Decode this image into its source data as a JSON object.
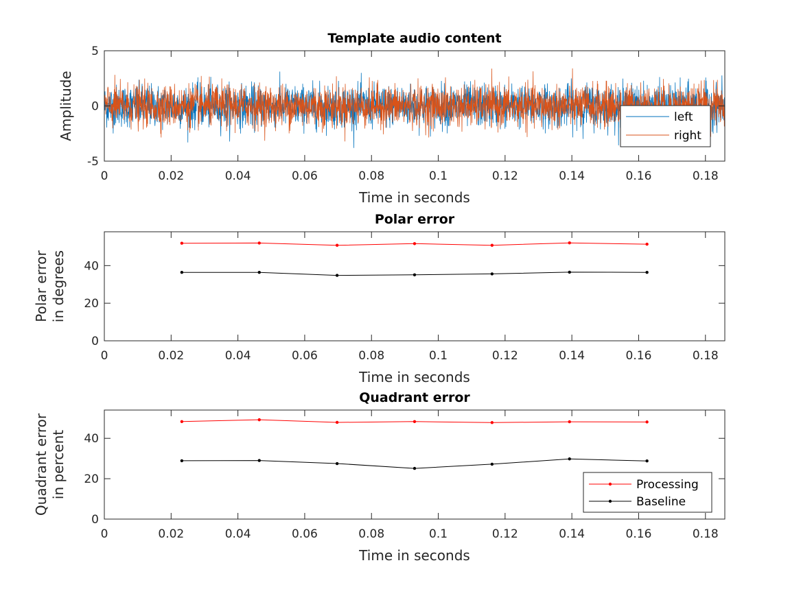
{
  "chart_data": [
    {
      "type": "line",
      "title": "Template audio content",
      "xlabel": "Time in seconds",
      "ylabel": [
        "Amplitude"
      ],
      "xlim": [
        0,
        0.1858
      ],
      "ylim": [
        -5,
        5
      ],
      "xticks": [
        0,
        0.02,
        0.04,
        0.06,
        0.08,
        0.1,
        0.12,
        0.14,
        0.16,
        0.18
      ],
      "xtick_labels": [
        "0",
        "0.02",
        "0.04",
        "0.06",
        "0.08",
        "0.1",
        "0.12",
        "0.14",
        "0.16",
        "0.18"
      ],
      "yticks": [
        -5,
        0,
        5
      ],
      "ytick_labels": [
        "-5",
        "0",
        "5"
      ],
      "grid": false,
      "legend_placement": "right",
      "series": [
        {
          "name": "left",
          "color": "#0072BD",
          "description_of_values": "noise signal, amplitude approx. within -3.8 to 3.6"
        },
        {
          "name": "right",
          "color": "#D95319",
          "description_of_values": "noise signal, amplitude approx. within -3.8 to 3.6"
        }
      ]
    },
    {
      "type": "line",
      "title": "Polar error",
      "xlabel": "Time in seconds",
      "ylabel": [
        "Polar error",
        "in degrees"
      ],
      "xlim": [
        0,
        0.1858
      ],
      "ylim": [
        0,
        58
      ],
      "xticks": [
        0,
        0.02,
        0.04,
        0.06,
        0.08,
        0.1,
        0.12,
        0.14,
        0.16,
        0.18
      ],
      "xtick_labels": [
        "0",
        "0.02",
        "0.04",
        "0.06",
        "0.08",
        "0.1",
        "0.12",
        "0.14",
        "0.16",
        "0.18"
      ],
      "yticks": [
        0,
        20,
        40
      ],
      "ytick_labels": [
        "0",
        "20",
        "40"
      ],
      "grid": false,
      "x": [
        0.0232,
        0.0464,
        0.0697,
        0.0929,
        0.1161,
        0.1393,
        0.1625
      ],
      "series": [
        {
          "color": "#FF0000",
          "values": [
            51.9,
            52.0,
            50.8,
            51.7,
            50.8,
            52.1,
            51.4
          ]
        },
        {
          "color": "#000000",
          "values": [
            36.4,
            36.4,
            34.8,
            35.1,
            35.6,
            36.5,
            36.4
          ]
        }
      ]
    },
    {
      "type": "line",
      "title": "Quadrant error",
      "xlabel": "Time in seconds",
      "ylabel": [
        "Quadrant error",
        "in percent"
      ],
      "xlim": [
        0,
        0.1858
      ],
      "ylim": [
        0,
        54
      ],
      "xticks": [
        0,
        0.02,
        0.04,
        0.06,
        0.08,
        0.1,
        0.12,
        0.14,
        0.16,
        0.18
      ],
      "xtick_labels": [
        "0",
        "0.02",
        "0.04",
        "0.06",
        "0.08",
        "0.1",
        "0.12",
        "0.14",
        "0.16",
        "0.18"
      ],
      "yticks": [
        0,
        20,
        40
      ],
      "ytick_labels": [
        "0",
        "20",
        "40"
      ],
      "grid": false,
      "legend_placement": "bottom-right",
      "x": [
        0.0232,
        0.0464,
        0.0697,
        0.0929,
        0.1161,
        0.1393,
        0.1625
      ],
      "series": [
        {
          "name": "Processing",
          "color": "#FF0000",
          "values": [
            48.3,
            49.2,
            47.9,
            48.3,
            47.8,
            48.2,
            48.1
          ]
        },
        {
          "name": "Baseline",
          "color": "#000000",
          "values": [
            28.9,
            29.0,
            27.5,
            25.1,
            27.2,
            29.8,
            28.8
          ]
        }
      ]
    }
  ]
}
